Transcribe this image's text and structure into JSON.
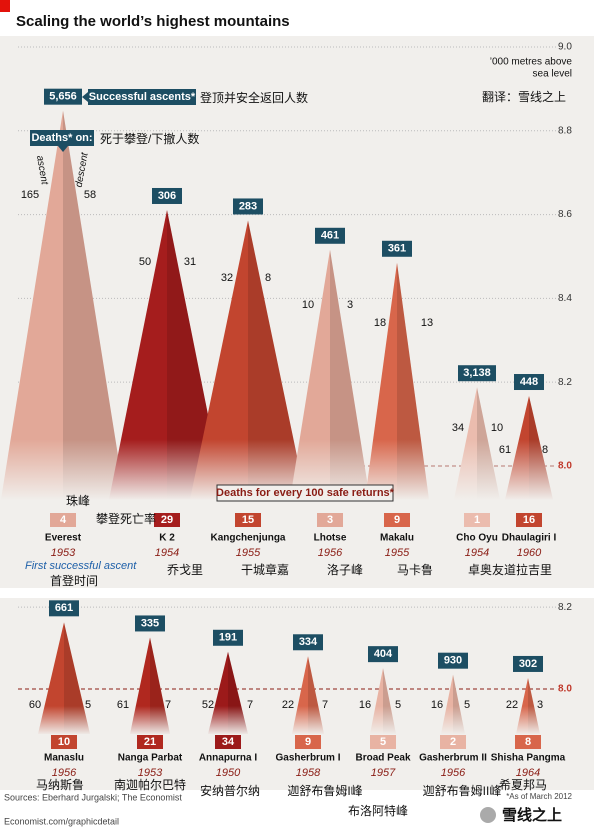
{
  "header": {
    "title": "Scaling the world’s highest mountains",
    "subtitle": [
      "’000 metres above",
      "sea level"
    ],
    "translator": "翻译：雪线之上"
  },
  "annotations": {
    "ascents_key": "Successful ascents*",
    "ascents_key_cn": "登顶并安全返回人数",
    "deaths_key": "Deaths* on:",
    "deaths_key_cn": "死于攀登/下撤人数",
    "ascent": "ascent",
    "descent": "descent",
    "everest_cn": "珠峰",
    "rate_key": "Deaths for every 100 safe returns*",
    "rate_key_cn": "攀登死亡率",
    "first_ascent": "First successful ascent",
    "first_ascent_cn": "首登时间"
  },
  "chart_data": [
    {
      "type": "mountain",
      "ylim": [
        7.92,
        9.0
      ],
      "yticks": [
        {
          "value": 9,
          "label": "9.0"
        },
        8.8,
        8.6,
        8.4,
        8.2,
        {
          "value": 8,
          "label": "8.0"
        }
      ],
      "categories": [
        "Everest",
        "K 2",
        "Kangchenjunga",
        "Lhotse",
        "Makalu",
        "Cho Oyu",
        "Dhaulagiri I"
      ],
      "categories_cn": [
        "",
        "乔戈里",
        "干城章嘉",
        "洛子峰",
        "马卡鲁",
        "卓奥友",
        "道拉吉里"
      ],
      "values": [
        8.848,
        8.611,
        8.586,
        8.516,
        8.485,
        8.188,
        8.167
      ],
      "ascents": [
        "5,656",
        "306",
        "283",
        "461",
        "361",
        "3,138",
        "448"
      ],
      "deaths_ascent": [
        165,
        50,
        32,
        10,
        18,
        34,
        61
      ],
      "deaths_descent": [
        58,
        31,
        8,
        3,
        13,
        10,
        8
      ],
      "death_rates": [
        4,
        29,
        15,
        3,
        9,
        1,
        16
      ],
      "years": [
        1953,
        1954,
        1955,
        1956,
        1955,
        1954,
        1960
      ],
      "colors": [
        "#e2a898",
        "#a51d1d",
        "#c2452f",
        "#e2a898",
        "#d8664b",
        "#ebbcae",
        "#c2452f"
      ]
    },
    {
      "type": "mountain",
      "ylim": [
        7.89,
        8.22
      ],
      "yticks": [
        8.2,
        {
          "value": 8,
          "label": "8.0"
        }
      ],
      "categories": [
        "Manaslu",
        "Nanga Parbat",
        "Annapurna I",
        "Gasherbrum I",
        "Broad Peak",
        "Gasherbrum II",
        "Shisha Pangma"
      ],
      "categories_cn": [
        "马纳斯鲁",
        "南迦帕尔巴特",
        "安纳普尔纳",
        "迦舒布鲁姆I峰",
        "布洛阿特峰",
        "迦舒布鲁姆II峰",
        "希夏邦马"
      ],
      "values": [
        8.163,
        8.126,
        8.091,
        8.08,
        8.051,
        8.035,
        8.027
      ],
      "ascents": [
        "661",
        "335",
        "191",
        "334",
        "404",
        "930",
        "302"
      ],
      "deaths_ascent": [
        60,
        61,
        52,
        22,
        16,
        16,
        22
      ],
      "deaths_descent": [
        5,
        7,
        7,
        7,
        5,
        5,
        3
      ],
      "death_rates": [
        10,
        21,
        34,
        9,
        5,
        2,
        8
      ],
      "years": [
        1956,
        1953,
        1950,
        1958,
        1957,
        1956,
        1964
      ],
      "colors": [
        "#c2452f",
        "#b0281f",
        "#9c1a1a",
        "#d8664b",
        "#e8b3a3",
        "#e8b3a3",
        "#d8664b"
      ]
    }
  ],
  "footer": {
    "sources": "Sources: Eberhard Jurgalski; The Economist",
    "as_of": "*As of March 2012",
    "url": "Economist.com/graphicdetail",
    "watermark": "雪线之上"
  }
}
